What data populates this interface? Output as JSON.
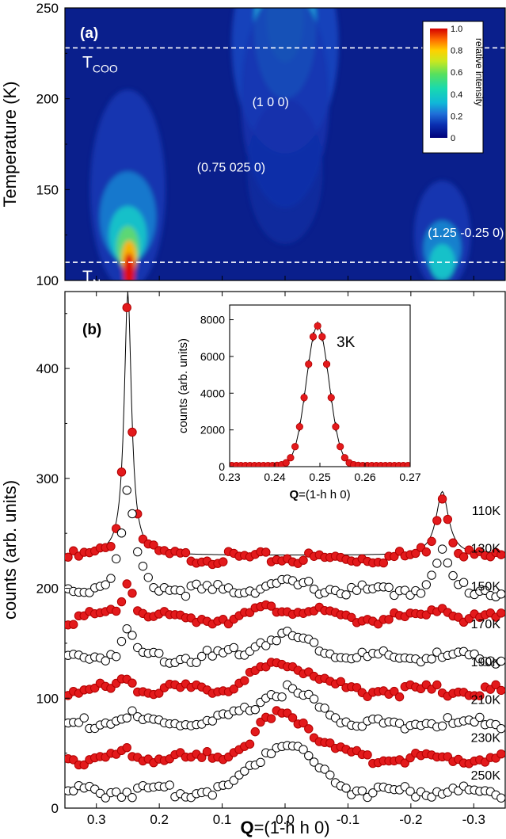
{
  "colors": {
    "heatmap_low": "#0a1f8c",
    "heatmap_mid": "#00d5c8",
    "heatmap_high": "#e8101a",
    "filled_marker": "#e31a1c",
    "dashed_line": "#ffffff"
  },
  "chart_data": [
    {
      "id": "a",
      "type": "heatmap",
      "panel_label": "(a)",
      "ylabel": "Temperature (K)",
      "xlim": [
        0.35,
        -0.35
      ],
      "ylim": [
        100,
        250
      ],
      "yticks": [
        100,
        150,
        200,
        250
      ],
      "colorbar": {
        "label": "relative intensity",
        "min": 0,
        "max": 1.0,
        "ticks": [
          "0",
          "0.2",
          "0.4",
          "0.6",
          "0.8",
          "1.0"
        ]
      },
      "lines": [
        {
          "label": "T",
          "sub": "COO",
          "temperature": 228
        },
        {
          "label": "T",
          "sub": "N",
          "temperature": 110
        }
      ],
      "peaks": [
        {
          "label": "(1 0 0)",
          "q": 0.0
        },
        {
          "label": "(0.75 025 0)",
          "q": 0.25
        },
        {
          "label": "(1.25 -0.25 0)",
          "q": -0.25
        }
      ]
    },
    {
      "id": "b",
      "type": "scatter",
      "panel_label": "(b)",
      "ylabel": "counts (arb. units)",
      "xlabel_bold": "Q",
      "xlabel_rest": "=(1-h h 0)",
      "xlim": [
        0.35,
        -0.35
      ],
      "ylim": [
        0,
        470
      ],
      "xticks": [
        0.3,
        0.2,
        0.1,
        0.0,
        -0.1,
        -0.2,
        -0.3
      ],
      "xtick_labels": [
        "0.3",
        "0.2",
        "0.1",
        "0.0",
        "-0.1",
        "-0.2",
        "-0.3"
      ],
      "yticks": [
        0,
        100,
        200,
        300,
        400
      ],
      "series": [
        {
          "name": "110K",
          "offset": 230,
          "filled": true,
          "broad": 0,
          "sharp": 240,
          "sharp_r": 58
        },
        {
          "name": "130K",
          "offset": 200,
          "filled": false,
          "broad": 6,
          "sharp": 90,
          "sharp_r": 35
        },
        {
          "name": "150K",
          "offset": 175,
          "filled": true,
          "broad": 10,
          "sharp": 33,
          "sharp_r": 12
        },
        {
          "name": "170K",
          "offset": 140,
          "filled": false,
          "broad": 20,
          "sharp": 22,
          "sharp_r": 0
        },
        {
          "name": "190K",
          "offset": 110,
          "filled": true,
          "broad": 25,
          "sharp": 12,
          "sharp_r": 0
        },
        {
          "name": "210K",
          "offset": 80,
          "filled": false,
          "broad": 30,
          "sharp": 8,
          "sharp_r": 0
        },
        {
          "name": "230K",
          "offset": 48,
          "filled": true,
          "broad": 40,
          "sharp": 5,
          "sharp_r": 0
        },
        {
          "name": "250K",
          "offset": 18,
          "filled": false,
          "broad": 45,
          "sharp": 0,
          "sharp_r": 0
        }
      ],
      "inset": {
        "label": "3K",
        "ylabel": "counts (arb. units)",
        "xlabel_bold": "Q",
        "xlabel_rest": "=(1-h h 0)",
        "xlim": [
          0.23,
          0.27
        ],
        "ylim": [
          0,
          8800
        ],
        "xticks": [
          0.23,
          0.24,
          0.25,
          0.26,
          0.27
        ],
        "xtick_labels": [
          "0.23",
          "0.24",
          "0.25",
          "0.26",
          "0.27"
        ],
        "yticks": [
          0,
          2000,
          4000,
          6000,
          8000
        ],
        "peak_center": 0.2495,
        "peak_amplitude": 7600,
        "peak_width": 0.0025
      }
    }
  ]
}
